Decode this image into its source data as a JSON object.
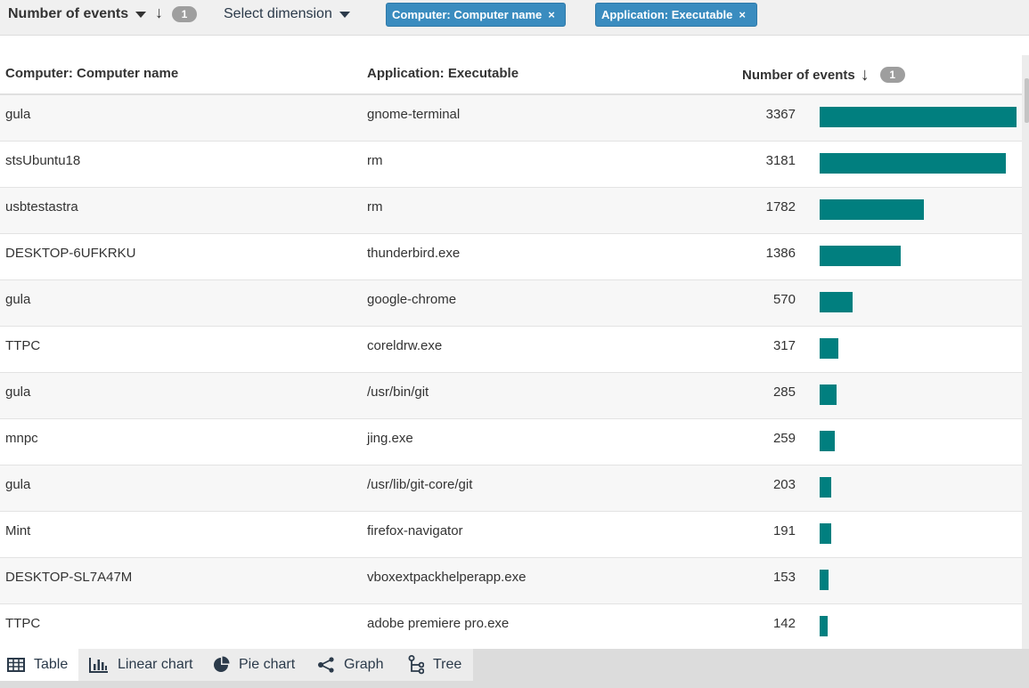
{
  "toolbar": {
    "metric_label": "Number of events",
    "sort_badge": "1",
    "dimension_placeholder": "Select dimension",
    "chips": [
      {
        "label": "Computer: Computer name"
      },
      {
        "label": "Application: Executable"
      }
    ]
  },
  "table": {
    "headers": {
      "computer": "Computer: Computer name",
      "application": "Application: Executable",
      "events": "Number of events",
      "events_badge": "1"
    },
    "max_value": 3367,
    "bar_color": "#017f7f",
    "rows": [
      {
        "computer": "gula",
        "application": "gnome-terminal",
        "events": 3367
      },
      {
        "computer": "stsUbuntu18",
        "application": "rm",
        "events": 3181
      },
      {
        "computer": "usbtestastra",
        "application": "rm",
        "events": 1782
      },
      {
        "computer": "DESKTOP-6UFKRKU",
        "application": "thunderbird.exe",
        "events": 1386
      },
      {
        "computer": "gula",
        "application": "google-chrome",
        "events": 570
      },
      {
        "computer": "TTPC",
        "application": "coreldrw.exe",
        "events": 317
      },
      {
        "computer": "gula",
        "application": "/usr/bin/git",
        "events": 285
      },
      {
        "computer": "mnpc",
        "application": "jing.exe",
        "events": 259
      },
      {
        "computer": "gula",
        "application": "/usr/lib/git-core/git",
        "events": 203
      },
      {
        "computer": "Mint",
        "application": "firefox-navigator",
        "events": 191
      },
      {
        "computer": "DESKTOP-SL7A47M",
        "application": "vboxextpackhelperapp.exe",
        "events": 153
      },
      {
        "computer": "TTPC",
        "application": "adobe premiere pro.exe",
        "events": 142
      }
    ]
  },
  "view_tabs": [
    {
      "label": "Table",
      "icon": "table-icon",
      "active": true
    },
    {
      "label": "Linear chart",
      "icon": "bar-chart-icon",
      "active": false
    },
    {
      "label": "Pie chart",
      "icon": "pie-chart-icon",
      "active": false
    },
    {
      "label": "Graph",
      "icon": "graph-icon",
      "active": false
    },
    {
      "label": "Tree",
      "icon": "tree-icon",
      "active": false
    }
  ]
}
